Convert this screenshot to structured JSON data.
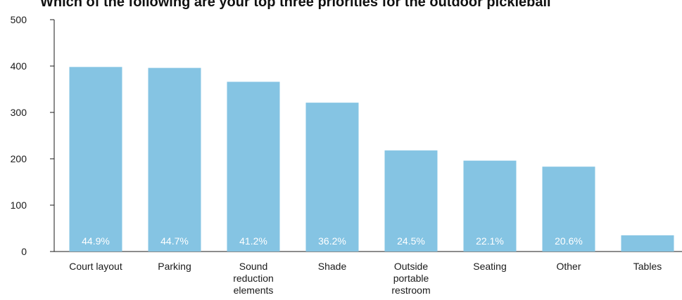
{
  "chart_data": {
    "type": "bar",
    "title": "Which of the following are your top three priorities for the outdoor pickleball",
    "xlabel": "",
    "ylabel": "",
    "ylim": [
      0,
      500
    ],
    "yticks": [
      0,
      100,
      200,
      300,
      400,
      500
    ],
    "categories": [
      [
        "Court layout"
      ],
      [
        "Parking"
      ],
      [
        "Sound",
        "reduction",
        "elements"
      ],
      [
        "Shade"
      ],
      [
        "Outside",
        "portable",
        "restroom"
      ],
      [
        "Seating"
      ],
      [
        "Other"
      ],
      [
        "Tables"
      ]
    ],
    "values": [
      398,
      396,
      366,
      321,
      218,
      196,
      183,
      35
    ],
    "data_labels": [
      "44.9%",
      "44.7%",
      "41.2%",
      "36.2%",
      "24.5%",
      "22.1%",
      "20.6%",
      ""
    ],
    "bar_color": "#85c4e3",
    "axis_color": "#1a1a1a",
    "grid": false,
    "legend": "none"
  }
}
